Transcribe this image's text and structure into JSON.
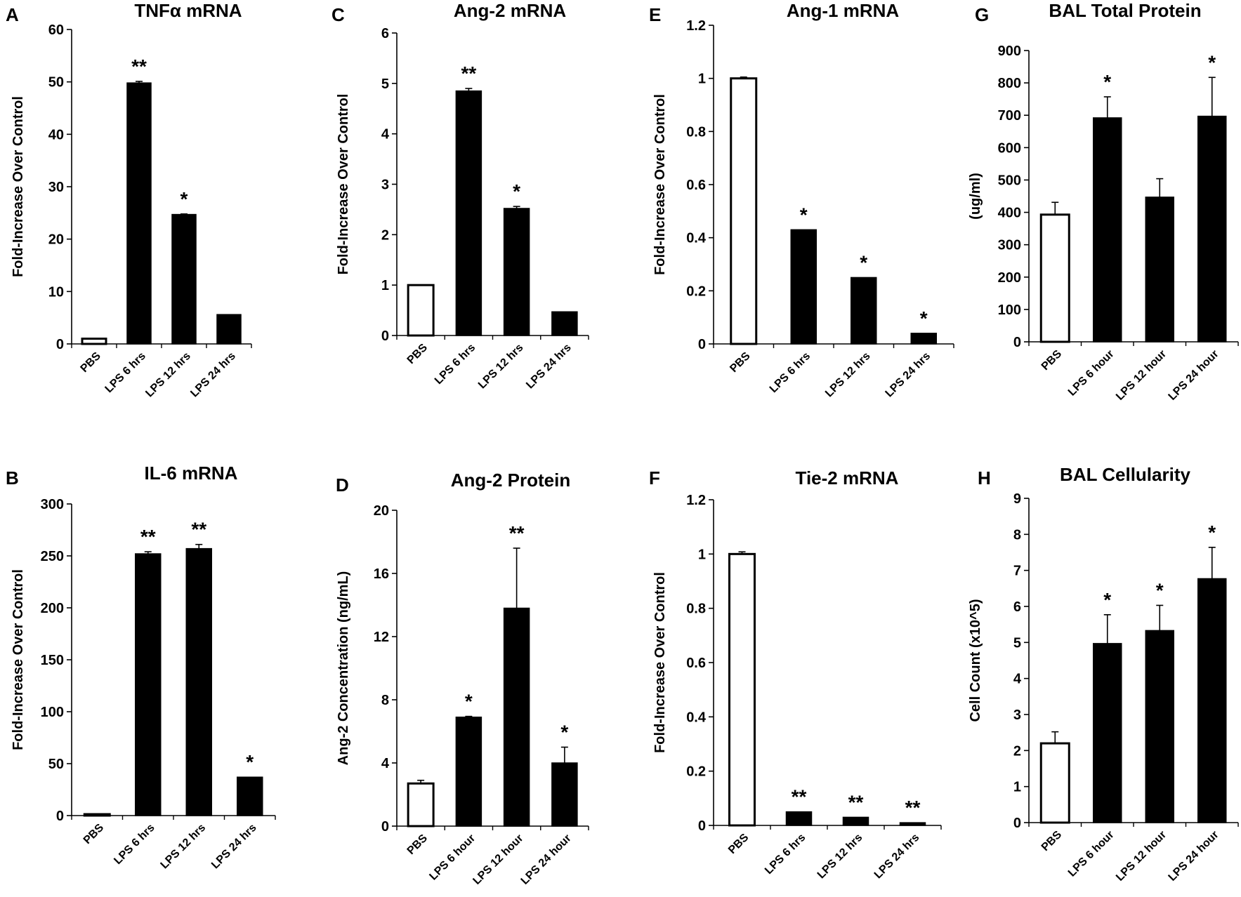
{
  "chart_data": [
    {
      "panel": "A",
      "type": "bar",
      "title": "TNFα mRNA",
      "ylabel": "Fold-Increase Over Control",
      "xlabel": "",
      "categories": [
        "PBS",
        "LPS 6 hrs",
        "LPS 12 hrs",
        "LPS 24 hrs"
      ],
      "values": [
        1,
        49.8,
        24.7,
        5.6
      ],
      "errors": [
        0,
        0.3,
        0.1,
        0
      ],
      "bar_fill": [
        "#ffffff",
        "#000000",
        "#000000",
        "#000000"
      ],
      "significance": [
        "",
        "**",
        "*",
        ""
      ],
      "ylim": [
        0,
        60
      ],
      "yticks": [
        0,
        10,
        20,
        30,
        40,
        50,
        60
      ],
      "tick_format": "int"
    },
    {
      "panel": "B",
      "type": "bar",
      "title": "IL-6 mRNA",
      "ylabel": "Fold-Increase Over Control",
      "xlabel": "",
      "categories": [
        "PBS",
        "LPS 6 hrs",
        "LPS 12 hrs",
        "LPS 24 hrs"
      ],
      "values": [
        1,
        252,
        257,
        37
      ],
      "errors": [
        0,
        2,
        4,
        0
      ],
      "bar_fill": [
        "#ffffff",
        "#000000",
        "#000000",
        "#000000"
      ],
      "significance": [
        "",
        "**",
        "**",
        "*"
      ],
      "ylim": [
        0,
        300
      ],
      "yticks": [
        0,
        50,
        100,
        150,
        200,
        250,
        300
      ],
      "tick_format": "int"
    },
    {
      "panel": "C",
      "type": "bar",
      "title": "Ang-2 mRNA",
      "ylabel": "Fold-Increase Over Control",
      "xlabel": "",
      "categories": [
        "PBS",
        "LPS 6 hrs",
        "LPS 12 hrs",
        "LPS 24 hrs"
      ],
      "values": [
        1,
        4.85,
        2.52,
        0.47
      ],
      "errors": [
        0,
        0.05,
        0.04,
        0
      ],
      "bar_fill": [
        "#ffffff",
        "#000000",
        "#000000",
        "#000000"
      ],
      "significance": [
        "",
        "**",
        "*",
        ""
      ],
      "ylim": [
        0,
        6
      ],
      "yticks": [
        0,
        1,
        2,
        3,
        4,
        5,
        6
      ],
      "tick_format": "int"
    },
    {
      "panel": "D",
      "type": "bar",
      "title": "Ang-2 Protein",
      "ylabel": "Ang-2 Concentration (ng/mL)",
      "xlabel": "",
      "categories": [
        "PBS",
        "LPS 6 hour",
        "LPS 12 hour",
        "LPS 24 hour"
      ],
      "values": [
        2.7,
        6.9,
        13.8,
        4.0
      ],
      "errors": [
        0.2,
        0.05,
        3.8,
        1.0
      ],
      "bar_fill": [
        "#ffffff",
        "#000000",
        "#000000",
        "#000000"
      ],
      "significance": [
        "",
        "*",
        "**",
        "*"
      ],
      "ylim": [
        0,
        20
      ],
      "yticks": [
        0,
        4,
        8,
        12,
        16,
        20
      ],
      "tick_format": "int"
    },
    {
      "panel": "E",
      "type": "bar",
      "title": "Ang-1 mRNA",
      "ylabel": "Fold-Increase Over Control",
      "xlabel": "",
      "categories": [
        "PBS",
        "LPS 6 hrs",
        "LPS 12 hrs",
        "LPS 24 hrs"
      ],
      "values": [
        1.0,
        0.43,
        0.25,
        0.04
      ],
      "errors": [
        0.005,
        0,
        0,
        0
      ],
      "bar_fill": [
        "#ffffff",
        "#000000",
        "#000000",
        "#000000"
      ],
      "significance": [
        "",
        "*",
        "*",
        "*"
      ],
      "ylim": [
        0,
        1.2
      ],
      "yticks": [
        0,
        0.2,
        0.4,
        0.6,
        0.8,
        1,
        1.2
      ],
      "tick_format": "dec"
    },
    {
      "panel": "F",
      "type": "bar",
      "title": "Tie-2 mRNA",
      "ylabel": "Fold-Increase Over Control",
      "xlabel": "",
      "categories": [
        "PBS",
        "LPS 6 hrs",
        "LPS 12 hrs",
        "LPS 24 hrs"
      ],
      "values": [
        1.0,
        0.05,
        0.03,
        0.01
      ],
      "errors": [
        0.008,
        0,
        0,
        0
      ],
      "bar_fill": [
        "#ffffff",
        "#000000",
        "#000000",
        "#000000"
      ],
      "significance": [
        "",
        "**",
        "**",
        "**"
      ],
      "ylim": [
        0,
        1.2
      ],
      "yticks": [
        0,
        0.2,
        0.4,
        0.6,
        0.8,
        1,
        1.2
      ],
      "tick_format": "dec"
    },
    {
      "panel": "G",
      "type": "bar",
      "title": "BAL Total Protein",
      "ylabel": "(ug/ml)",
      "xlabel": "",
      "categories": [
        "PBS",
        "LPS 6 hour",
        "LPS 12 hour",
        "LPS 24 hour"
      ],
      "values": [
        393,
        692,
        447,
        697
      ],
      "errors": [
        38,
        65,
        57,
        120
      ],
      "bar_fill": [
        "#ffffff",
        "#000000",
        "#000000",
        "#000000"
      ],
      "significance": [
        "",
        "*",
        "",
        "*"
      ],
      "ylim": [
        0,
        900
      ],
      "yticks": [
        0,
        100,
        200,
        300,
        400,
        500,
        600,
        700,
        800,
        900
      ],
      "tick_format": "int"
    },
    {
      "panel": "H",
      "type": "bar",
      "title": "BAL Cellularity",
      "ylabel": "Cell Count (x10^5)",
      "xlabel": "",
      "categories": [
        "PBS",
        "LPS 6 hour",
        "LPS 12 hour",
        "LPS 24 hour"
      ],
      "values": [
        2.2,
        4.97,
        5.33,
        6.77
      ],
      "errors": [
        0.32,
        0.8,
        0.7,
        0.87
      ],
      "bar_fill": [
        "#ffffff",
        "#000000",
        "#000000",
        "#000000"
      ],
      "significance": [
        "",
        "*",
        "*",
        "*"
      ],
      "ylim": [
        0,
        9
      ],
      "yticks": [
        0,
        1,
        2,
        3,
        4,
        5,
        6,
        7,
        8,
        9
      ],
      "tick_format": "int"
    }
  ]
}
